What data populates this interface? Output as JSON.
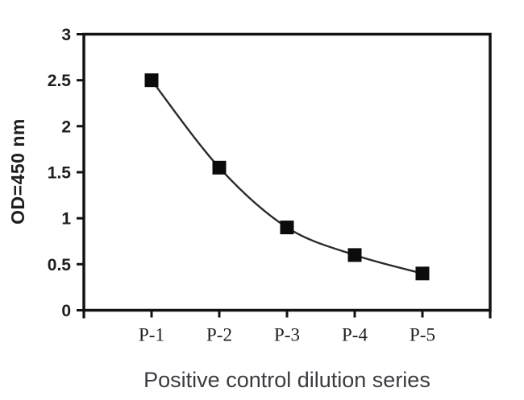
{
  "chart_data": {
    "type": "line",
    "title": "",
    "categories": [
      "P-1",
      "P-2",
      "P-3",
      "P-4",
      "P-5"
    ],
    "values": [
      2.5,
      1.55,
      0.9,
      0.6,
      0.4
    ],
    "series": [
      {
        "name": "Positive control",
        "values": [
          2.5,
          1.55,
          0.9,
          0.6,
          0.4
        ]
      }
    ],
    "xlabel": "Positive control dilution series",
    "ylabel": "OD=450 nm",
    "ylim": [
      0,
      3
    ],
    "yticks": [
      0,
      0.5,
      1,
      1.5,
      2,
      2.5,
      3
    ],
    "grid": false,
    "legend": false,
    "marker": "filled-square",
    "smooth": true,
    "colors": {
      "axis": "#121212",
      "line": "#2a2a2a",
      "marker": "#0b0b0b",
      "tick_label": "#1d1d22",
      "axis_title": "#3b3b42",
      "background": "#ffffff"
    }
  }
}
